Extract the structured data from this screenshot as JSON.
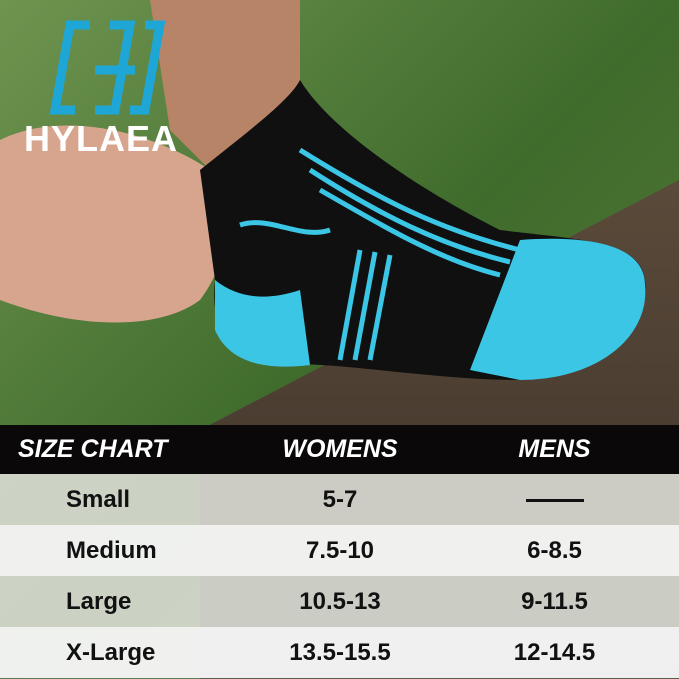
{
  "brand": {
    "name": "HYLAEA",
    "logo_color": "#1ea7d6"
  },
  "size_chart": {
    "headers": [
      "SIZE CHART",
      "WOMENS",
      "MENS"
    ],
    "rows": [
      {
        "size": "Small",
        "womens": "5-7",
        "mens": "—"
      },
      {
        "size": "Medium",
        "womens": "7.5-10",
        "mens": "6-8.5"
      },
      {
        "size": "Large",
        "womens": "10.5-13",
        "mens": "9-11.5"
      },
      {
        "size": "X-Large",
        "womens": "13.5-15.5",
        "mens": "12-14.5"
      }
    ]
  },
  "colors": {
    "sock_accent": "#3cc6e6",
    "sock_base": "#101010",
    "header_bg": "#0a0808"
  }
}
